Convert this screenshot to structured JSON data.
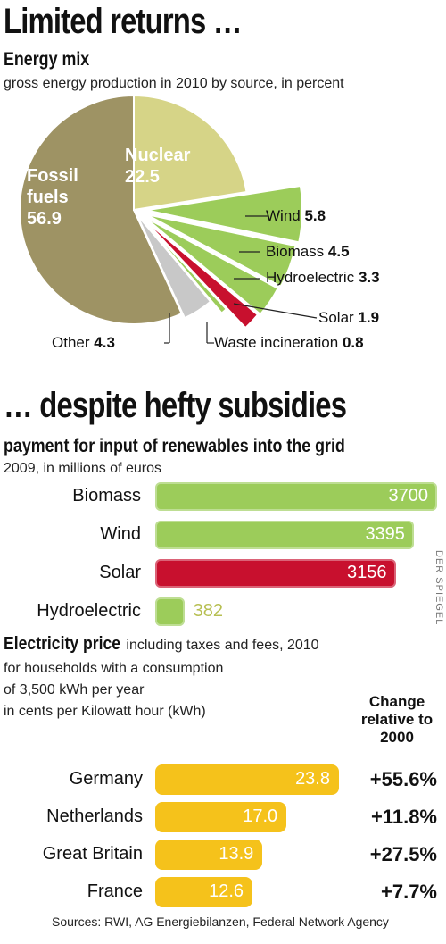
{
  "headline1": "Limited returns …",
  "headline2": "… despite hefty subsidies",
  "source": "Sources: RWI, AG Energiebilanzen, Federal Network Agency",
  "credit": "DER SPIEGEL",
  "colors": {
    "fossil": "#9e9364",
    "nuclear": "#d6d487",
    "renew": "#9ccc5a",
    "solar": "#c8102e",
    "other": "#c8c8c8",
    "price": "#f5c21b"
  },
  "energy": {
    "title": "Energy mix",
    "subtitle": "gross energy production in 2010 by source, in percent",
    "fossil_l1": "Fossil",
    "fossil_l2": "fuels",
    "fossil_val": "56.9",
    "nuclear_l1": "Nuclear",
    "nuclear_val": "22.5",
    "wind_name": "Wind",
    "wind_val": "5.8",
    "biomass_name": "Biomass",
    "biomass_val": "4.5",
    "hydro_name": "Hydroelectric",
    "hydro_val": "3.3",
    "solar_name": "Solar",
    "solar_val": "1.9",
    "waste_name": "Waste incineration",
    "waste_val": "0.8",
    "other_name": "Other",
    "other_val": "4.3"
  },
  "payment": {
    "title": "payment for input of renewables into the grid",
    "subtitle": "2009, in millions of euros",
    "labels": [
      "Biomass",
      "Wind",
      "Solar",
      "Hydroelectric"
    ],
    "values_text": [
      "3700",
      "3395",
      "3156",
      "382"
    ]
  },
  "price": {
    "title": "Electricity price",
    "title_rest": " including taxes and fees, 2010",
    "line2": "for households with a consumption",
    "line3": "of 3,500 kWh per year",
    "line4": "in cents per Kilowatt hour (kWh)",
    "change_h1": "Change",
    "change_h2": "relative to",
    "change_h3": "2000",
    "countries": [
      "Germany",
      "Netherlands",
      "Great Britain",
      "France"
    ],
    "values_text": [
      "23.8",
      "17.0",
      "13.9",
      "12.6"
    ],
    "changes": [
      "+55.6%",
      "+11.8%",
      "+27.5%",
      "+7.7%"
    ]
  },
  "chart_data": [
    {
      "type": "pie",
      "title": "Energy mix",
      "subtitle": "gross energy production in 2010 by source, in percent",
      "categories": [
        "Fossil fuels",
        "Nuclear",
        "Wind",
        "Biomass",
        "Hydroelectric",
        "Solar",
        "Waste incineration",
        "Other"
      ],
      "values": [
        56.9,
        22.5,
        5.8,
        4.5,
        3.3,
        1.9,
        0.8,
        4.3
      ]
    },
    {
      "type": "bar",
      "title": "payment for input of renewables into the grid",
      "subtitle": "2009, in millions of euros",
      "categories": [
        "Biomass",
        "Wind",
        "Solar",
        "Hydroelectric"
      ],
      "values": [
        3700,
        3395,
        3156,
        382
      ]
    },
    {
      "type": "bar",
      "title": "Electricity price",
      "subtitle": "including taxes and fees, 2010 for households with a consumption of 3,500 kWh per year in cents per Kilowatt hour (kWh)",
      "categories": [
        "Germany",
        "Netherlands",
        "Great Britain",
        "France"
      ],
      "values": [
        23.8,
        17.0,
        13.9,
        12.6
      ],
      "annotations": [
        "+55.6%",
        "+11.8%",
        "+27.5%",
        "+7.7%"
      ]
    }
  ]
}
